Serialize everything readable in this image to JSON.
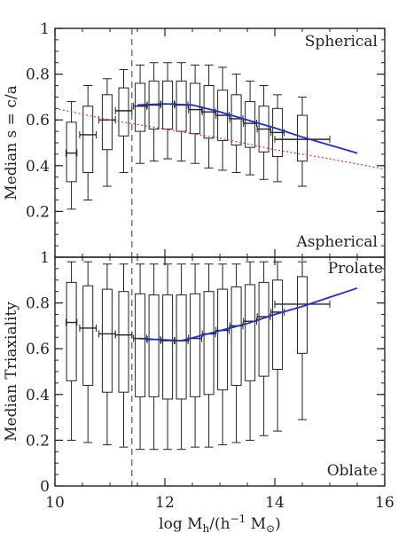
{
  "chart_data": [
    {
      "type": "boxplot",
      "panel": "top",
      "ylabel": "Median s = c/a",
      "xlim": [
        10,
        16
      ],
      "ylim": [
        0,
        1
      ],
      "x_ticks": [
        10,
        12,
        14,
        16
      ],
      "y_ticks": [
        0.2,
        0.4,
        0.6,
        0.8,
        1
      ],
      "y_tick_labels": [
        "0.2",
        "0.4",
        "0.6",
        "0.8",
        "1"
      ],
      "annotations": {
        "top": "Spherical",
        "bottom": "Aspherical"
      },
      "vline_x": 11.4,
      "boxes": [
        {
          "x": 10.3,
          "whisker_low": 0.21,
          "q1": 0.33,
          "median": 0.455,
          "q3": 0.59,
          "whisker_high": 0.68,
          "x_err": 0.1
        },
        {
          "x": 10.6,
          "whisker_low": 0.25,
          "q1": 0.37,
          "median": 0.535,
          "q3": 0.66,
          "whisker_high": 0.75,
          "x_err": 0.15
        },
        {
          "x": 10.95,
          "whisker_low": 0.31,
          "q1": 0.47,
          "median": 0.6,
          "q3": 0.71,
          "whisker_high": 0.78,
          "x_err": 0.15
        },
        {
          "x": 11.25,
          "whisker_low": 0.37,
          "q1": 0.53,
          "median": 0.64,
          "q3": 0.74,
          "whisker_high": 0.82,
          "x_err": 0.15
        },
        {
          "x": 11.55,
          "whisker_low": 0.41,
          "q1": 0.55,
          "median": 0.66,
          "q3": 0.76,
          "whisker_high": 0.84,
          "x_err": 0.12
        },
        {
          "x": 11.8,
          "whisker_low": 0.42,
          "q1": 0.56,
          "median": 0.665,
          "q3": 0.77,
          "whisker_high": 0.85,
          "x_err": 0.12
        },
        {
          "x": 12.05,
          "whisker_low": 0.43,
          "q1": 0.56,
          "median": 0.67,
          "q3": 0.77,
          "whisker_high": 0.85,
          "x_err": 0.12
        },
        {
          "x": 12.3,
          "whisker_low": 0.42,
          "q1": 0.55,
          "median": 0.665,
          "q3": 0.77,
          "whisker_high": 0.85,
          "x_err": 0.12
        },
        {
          "x": 12.55,
          "whisker_low": 0.41,
          "q1": 0.54,
          "median": 0.645,
          "q3": 0.76,
          "whisker_high": 0.84,
          "x_err": 0.12
        },
        {
          "x": 12.8,
          "whisker_low": 0.39,
          "q1": 0.52,
          "median": 0.635,
          "q3": 0.75,
          "whisker_high": 0.84,
          "x_err": 0.12
        },
        {
          "x": 13.05,
          "whisker_low": 0.38,
          "q1": 0.51,
          "median": 0.62,
          "q3": 0.73,
          "whisker_high": 0.83,
          "x_err": 0.12
        },
        {
          "x": 13.3,
          "whisker_low": 0.37,
          "q1": 0.49,
          "median": 0.605,
          "q3": 0.71,
          "whisker_high": 0.8,
          "x_err": 0.12
        },
        {
          "x": 13.55,
          "whisker_low": 0.36,
          "q1": 0.48,
          "median": 0.585,
          "q3": 0.68,
          "whisker_high": 0.77,
          "x_err": 0.12
        },
        {
          "x": 13.8,
          "whisker_low": 0.34,
          "q1": 0.46,
          "median": 0.56,
          "q3": 0.66,
          "whisker_high": 0.75,
          "x_err": 0.12
        },
        {
          "x": 14.05,
          "whisker_low": 0.33,
          "q1": 0.44,
          "median": 0.545,
          "q3": 0.65,
          "whisker_high": 0.71,
          "x_err": 0.12
        },
        {
          "x": 14.5,
          "whisker_low": 0.31,
          "q1": 0.42,
          "median": 0.515,
          "q3": 0.62,
          "whisker_high": 0.7,
          "x_err": 0.5
        }
      ],
      "series": [
        {
          "style": "solid",
          "color": "#1f2dcf",
          "x": [
            11.5,
            12.0,
            12.5,
            13.0,
            13.5,
            14.0,
            14.5,
            15.0,
            15.5
          ],
          "y": [
            0.665,
            0.67,
            0.665,
            0.635,
            0.6,
            0.565,
            0.525,
            0.49,
            0.455
          ]
        },
        {
          "style": "dotted",
          "color": "#e0362b",
          "x": [
            10.0,
            11.0,
            12.0,
            13.0,
            14.0,
            15.0,
            16.0
          ],
          "y": [
            0.65,
            0.6,
            0.56,
            0.52,
            0.47,
            0.43,
            0.385
          ]
        }
      ]
    },
    {
      "type": "boxplot",
      "panel": "bottom",
      "ylabel": "Median Triaxiality",
      "xlabel": "log M_h/(h^-1 M_sun)",
      "xlabel_parts": {
        "main": "log M",
        "sub1": "h",
        "mid": "/(h",
        "sup": "−1",
        "mid2": " M",
        "sub2": "⊙",
        "end": ")"
      },
      "xlim": [
        10,
        16
      ],
      "ylim": [
        0,
        1
      ],
      "x_ticks": [
        10,
        12,
        14,
        16
      ],
      "x_tick_labels": [
        "10",
        "12",
        "14",
        "16"
      ],
      "y_ticks": [
        0,
        0.2,
        0.4,
        0.6,
        0.8,
        1
      ],
      "y_tick_labels": [
        "0",
        "0.2",
        "0.4",
        "0.6",
        "0.8",
        "1"
      ],
      "annotations": {
        "top": "Prolate",
        "bottom": "Oblate"
      },
      "vline_x": 11.4,
      "boxes": [
        {
          "x": 10.3,
          "whisker_low": 0.2,
          "q1": 0.46,
          "median": 0.715,
          "q3": 0.89,
          "whisker_high": 0.98,
          "x_err": 0.1
        },
        {
          "x": 10.6,
          "whisker_low": 0.19,
          "q1": 0.44,
          "median": 0.69,
          "q3": 0.875,
          "whisker_high": 0.98,
          "x_err": 0.15
        },
        {
          "x": 10.95,
          "whisker_low": 0.18,
          "q1": 0.41,
          "median": 0.665,
          "q3": 0.86,
          "whisker_high": 0.97,
          "x_err": 0.15
        },
        {
          "x": 11.25,
          "whisker_low": 0.17,
          "q1": 0.41,
          "median": 0.66,
          "q3": 0.85,
          "whisker_high": 0.97,
          "x_err": 0.15
        },
        {
          "x": 11.55,
          "whisker_low": 0.16,
          "q1": 0.39,
          "median": 0.645,
          "q3": 0.84,
          "whisker_high": 0.97,
          "x_err": 0.12
        },
        {
          "x": 11.8,
          "whisker_low": 0.16,
          "q1": 0.39,
          "median": 0.64,
          "q3": 0.835,
          "whisker_high": 0.97,
          "x_err": 0.12
        },
        {
          "x": 12.05,
          "whisker_low": 0.16,
          "q1": 0.38,
          "median": 0.635,
          "q3": 0.835,
          "whisker_high": 0.97,
          "x_err": 0.12
        },
        {
          "x": 12.3,
          "whisker_low": 0.16,
          "q1": 0.38,
          "median": 0.635,
          "q3": 0.835,
          "whisker_high": 0.97,
          "x_err": 0.12
        },
        {
          "x": 12.55,
          "whisker_low": 0.17,
          "q1": 0.39,
          "median": 0.645,
          "q3": 0.84,
          "whisker_high": 0.97,
          "x_err": 0.12
        },
        {
          "x": 12.8,
          "whisker_low": 0.17,
          "q1": 0.4,
          "median": 0.665,
          "q3": 0.85,
          "whisker_high": 0.97,
          "x_err": 0.12
        },
        {
          "x": 13.05,
          "whisker_low": 0.18,
          "q1": 0.42,
          "median": 0.68,
          "q3": 0.86,
          "whisker_high": 0.97,
          "x_err": 0.12
        },
        {
          "x": 13.3,
          "whisker_low": 0.19,
          "q1": 0.44,
          "median": 0.7,
          "q3": 0.87,
          "whisker_high": 0.97,
          "x_err": 0.12
        },
        {
          "x": 13.55,
          "whisker_low": 0.2,
          "q1": 0.46,
          "median": 0.72,
          "q3": 0.88,
          "whisker_high": 0.98,
          "x_err": 0.12
        },
        {
          "x": 13.8,
          "whisker_low": 0.22,
          "q1": 0.48,
          "median": 0.74,
          "q3": 0.89,
          "whisker_high": 0.98,
          "x_err": 0.12
        },
        {
          "x": 14.05,
          "whisker_low": 0.24,
          "q1": 0.51,
          "median": 0.76,
          "q3": 0.9,
          "whisker_high": 0.98,
          "x_err": 0.12
        },
        {
          "x": 14.5,
          "whisker_low": 0.29,
          "q1": 0.58,
          "median": 0.795,
          "q3": 0.915,
          "whisker_high": 0.98,
          "x_err": 0.5
        }
      ],
      "series": [
        {
          "style": "solid",
          "color": "#1f2dcf",
          "x": [
            11.5,
            11.9,
            12.3,
            12.7,
            13.1,
            13.5,
            14.0,
            14.5,
            15.0,
            15.5
          ],
          "y": [
            0.645,
            0.64,
            0.635,
            0.66,
            0.685,
            0.71,
            0.75,
            0.785,
            0.825,
            0.865
          ]
        }
      ]
    }
  ]
}
